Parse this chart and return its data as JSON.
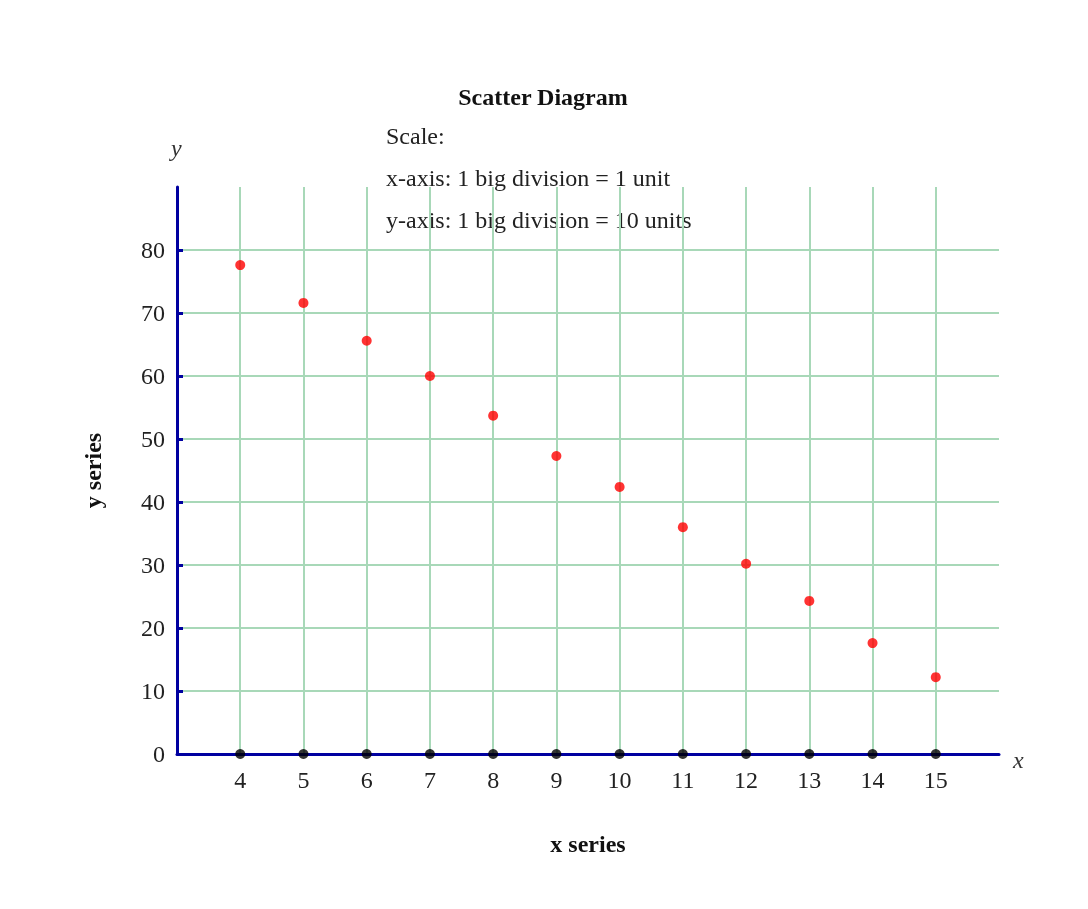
{
  "chart_data": {
    "type": "scatter",
    "title": "Scatter Diagram",
    "annotations": [
      "Scale:",
      "x-axis: 1 big division = 1 unit",
      "y-axis: 1 big division = 10 units",
      "x",
      "y"
    ],
    "xlabel": "x series",
    "ylabel": "y series",
    "x": [
      4,
      5,
      6,
      7,
      8,
      9,
      10,
      11,
      12,
      13,
      14,
      15
    ],
    "series": [
      {
        "color": "#ff0000",
        "values": [
          77.6,
          71.6,
          65.6,
          60,
          53.7,
          47.3,
          42.4,
          36,
          30.2,
          24.3,
          17.6,
          12.2
        ]
      },
      {
        "color": "#000000",
        "values": [
          0,
          0,
          0,
          0,
          0,
          0,
          0,
          0,
          0,
          0,
          0,
          0
        ]
      }
    ],
    "xlim": [
      3,
      16
    ],
    "xticks": [
      4,
      5,
      6,
      7,
      8,
      9,
      10,
      11,
      12,
      13,
      14,
      15
    ],
    "ylim": [
      0,
      90
    ],
    "yticks": [
      0,
      10,
      20,
      30,
      40,
      50,
      60,
      70,
      80
    ],
    "grid": true,
    "marker": "circle"
  }
}
